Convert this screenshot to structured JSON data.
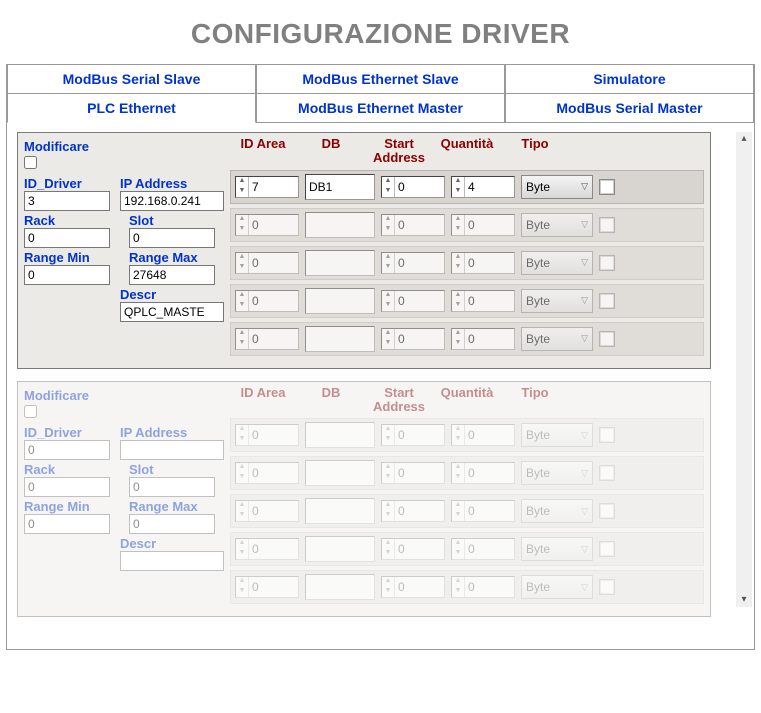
{
  "page_title": "CONFIGURAZIONE DRIVER",
  "tabs_row1": [
    {
      "label": "ModBus Serial Slave",
      "active": false
    },
    {
      "label": "ModBus Ethernet Slave",
      "active": false
    },
    {
      "label": "Simulatore",
      "active": false
    }
  ],
  "tabs_row2": [
    {
      "label": "PLC Ethernet",
      "active": true
    },
    {
      "label": "ModBus Ethernet Master",
      "active": false
    },
    {
      "label": "ModBus Serial Master",
      "active": false
    }
  ],
  "labels": {
    "modificare": "Modificare",
    "id_driver": "ID_Driver",
    "ip_address": "IP Address",
    "rack": "Rack",
    "slot": "Slot",
    "range_min": "Range Min",
    "range_max": "Range Max",
    "descr": "Descr"
  },
  "headers": {
    "id_area": "ID\nArea",
    "db": "DB",
    "start_addr": "Start\nAddress",
    "quantita": "Quantità",
    "tipo": "Tipo"
  },
  "blocks": [
    {
      "faded": false,
      "id_driver": "3",
      "ip_address": "192.168.0.241",
      "rack": "0",
      "slot": "0",
      "range_min": "0",
      "range_max": "27648",
      "descr": "QPLC_MASTE",
      "rows": [
        {
          "id_area": "7",
          "db": "DB1",
          "start": "0",
          "qty": "4",
          "tipo": "Byte",
          "disabled": false
        },
        {
          "id_area": "0",
          "db": "",
          "start": "0",
          "qty": "0",
          "tipo": "Byte",
          "disabled": true
        },
        {
          "id_area": "0",
          "db": "",
          "start": "0",
          "qty": "0",
          "tipo": "Byte",
          "disabled": true
        },
        {
          "id_area": "0",
          "db": "",
          "start": "0",
          "qty": "0",
          "tipo": "Byte",
          "disabled": true
        },
        {
          "id_area": "0",
          "db": "",
          "start": "0",
          "qty": "0",
          "tipo": "Byte",
          "disabled": true
        }
      ]
    },
    {
      "faded": true,
      "id_driver": "0",
      "ip_address": "",
      "rack": "0",
      "slot": "0",
      "range_min": "0",
      "range_max": "0",
      "descr": "",
      "rows": [
        {
          "id_area": "0",
          "db": "",
          "start": "0",
          "qty": "0",
          "tipo": "Byte",
          "disabled": true
        },
        {
          "id_area": "0",
          "db": "",
          "start": "0",
          "qty": "0",
          "tipo": "Byte",
          "disabled": true
        },
        {
          "id_area": "0",
          "db": "",
          "start": "0",
          "qty": "0",
          "tipo": "Byte",
          "disabled": true
        },
        {
          "id_area": "0",
          "db": "",
          "start": "0",
          "qty": "0",
          "tipo": "Byte",
          "disabled": true
        },
        {
          "id_area": "0",
          "db": "",
          "start": "0",
          "qty": "0",
          "tipo": "Byte",
          "disabled": true
        }
      ]
    }
  ]
}
